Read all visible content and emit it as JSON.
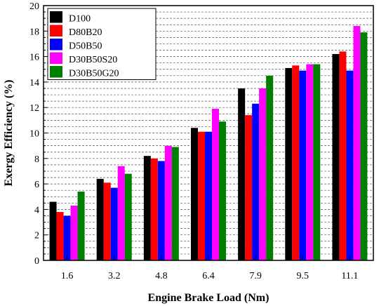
{
  "chart_data": {
    "type": "bar",
    "title": "",
    "xlabel": "Engine Brake Load (Nm)",
    "ylabel": "Exergy Efficiency (%)",
    "ylim": [
      0,
      20
    ],
    "y_major_step": 2,
    "y_minor_step": 0.5,
    "grid": "horizontal dashed",
    "legend_position": "top-left",
    "categories": [
      "1.6",
      "3.2",
      "4.8",
      "6.4",
      "7.9",
      "9.5",
      "11.1"
    ],
    "series": [
      {
        "name": "D100",
        "color": "#000000",
        "values": [
          4.6,
          6.4,
          8.2,
          10.4,
          13.5,
          15.1,
          16.2
        ]
      },
      {
        "name": "D80B20",
        "color": "#ff0000",
        "values": [
          3.8,
          6.1,
          8.0,
          10.1,
          11.4,
          15.3,
          16.4
        ]
      },
      {
        "name": "D50B50",
        "color": "#0000ff",
        "values": [
          3.5,
          5.7,
          7.8,
          10.1,
          12.3,
          14.9,
          14.9
        ]
      },
      {
        "name": "D30B50S20",
        "color": "#ff00ff",
        "values": [
          4.3,
          7.4,
          9.0,
          11.9,
          13.5,
          15.4,
          18.4
        ]
      },
      {
        "name": "D30B50G20",
        "color": "#008000",
        "values": [
          5.4,
          6.8,
          8.9,
          10.9,
          14.5,
          15.4,
          17.9
        ]
      }
    ]
  }
}
